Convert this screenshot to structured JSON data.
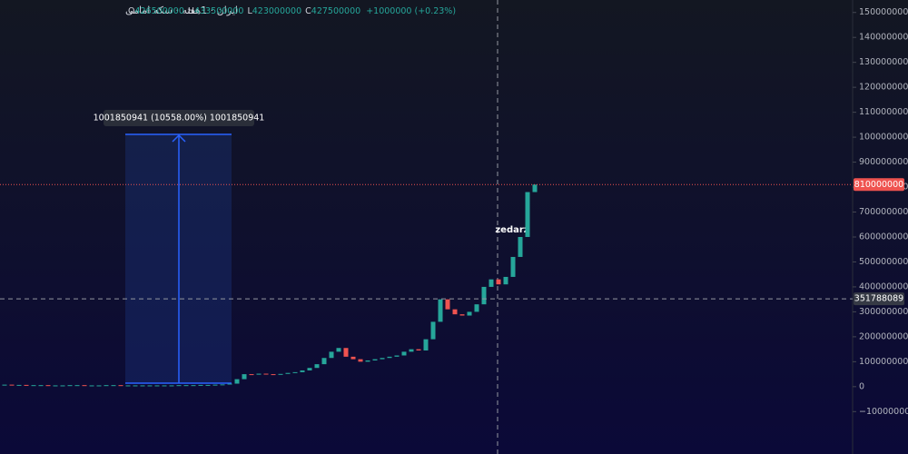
{
  "chart_data": {
    "type": "candlestick",
    "symbol_title": "ایران · 1هفته · سکه امامی",
    "ohlc": {
      "open_label": "O",
      "open": 426500000,
      "high_label": "H",
      "high": 433500000,
      "low_label": "L",
      "low": 423000000,
      "close_label": "C",
      "close": 427500000,
      "change": "+1000000 (+0.23%)"
    },
    "values": [
      8000000,
      7000000,
      7000000,
      6000000,
      6000000,
      6000000,
      5000000,
      5000000,
      5000000,
      6000000,
      6000000,
      5000000,
      5000000,
      5000000,
      6000000,
      6000000,
      5000000,
      5000000,
      5000000,
      5000000,
      5000000,
      5000000,
      5000000,
      5000000,
      6000000,
      6000000,
      6000000,
      7000000,
      7000000,
      8000000,
      9000000,
      12000000,
      30000000,
      50000000,
      48000000,
      52000000,
      50000000,
      49000000,
      51000000,
      55000000,
      58000000,
      65000000,
      75000000,
      90000000,
      115000000,
      140000000,
      155000000,
      120000000,
      110000000,
      100000000,
      105000000,
      110000000,
      115000000,
      120000000,
      125000000,
      140000000,
      150000000,
      145000000,
      190000000,
      260000000,
      350000000,
      310000000,
      290000000,
      285000000,
      300000000,
      330000000,
      400000000,
      430000000,
      410000000,
      440000000,
      520000000,
      600000000,
      780000000,
      810000000
    ],
    "up_color": "#26a69a",
    "down_color": "#ef5350",
    "ylim": [
      -270000000,
      1550000000
    ],
    "yticks": [
      {
        "value": -100000000,
        "label": "−100000000"
      },
      0,
      100000000,
      200000000,
      300000000,
      400000000,
      500000000,
      600000000,
      700000000,
      800000000,
      900000000,
      1000000000,
      1100000000,
      1200000000,
      1300000000,
      1400000000,
      1500000000
    ],
    "last_price": 810000000,
    "crosshair_value": 351788089,
    "measure_label": "1001850941 (10558.00%) 1001850941",
    "watermark": "zedarz"
  }
}
